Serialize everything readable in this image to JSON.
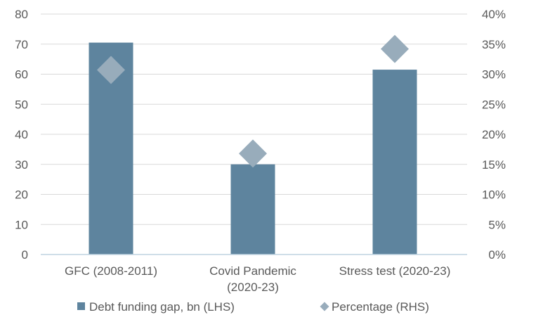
{
  "chart_data": {
    "type": "bar",
    "categories": [
      [
        "GFC (2008-2011)"
      ],
      [
        "Covid Pandemic",
        "(2020-23)"
      ],
      [
        "Stress test (2020-23)"
      ]
    ],
    "series": [
      {
        "name": "Debt funding gap, bn (LHS)",
        "kind": "bar",
        "axis": "left",
        "values": [
          70.5,
          30,
          61.5
        ]
      },
      {
        "name": "Percentage (RHS)",
        "kind": "marker",
        "marker": "diamond",
        "axis": "right",
        "values": [
          30.7,
          16.8,
          34.2
        ]
      }
    ],
    "left_axis": {
      "min": 0,
      "max": 80,
      "ticks": [
        "0",
        "10",
        "20",
        "30",
        "40",
        "50",
        "60",
        "70",
        "80"
      ]
    },
    "right_axis": {
      "min": 0,
      "max": 40,
      "ticks": [
        "0%",
        "5%",
        "10%",
        "15%",
        "20%",
        "25%",
        "30%",
        "35%",
        "40%"
      ]
    },
    "grid": true,
    "legend": "bottom",
    "colors": {
      "bar": "#5e849e",
      "marker": "#98acbb",
      "grid": "#d9d9d9",
      "axis": "#bfd3e0",
      "text": "#595959"
    }
  }
}
